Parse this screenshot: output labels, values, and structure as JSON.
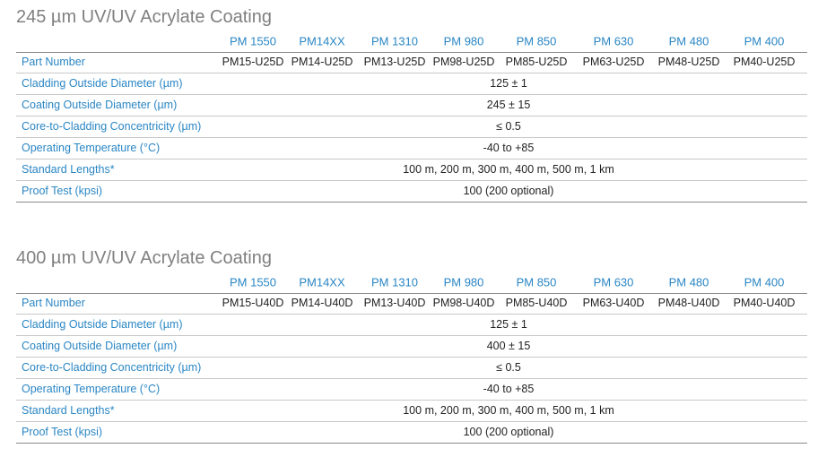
{
  "tables": [
    {
      "title": "245 µm UV/UV Acrylate Coating",
      "columns": [
        "PM 1550",
        "PM14XX",
        "PM 1310",
        "PM 980",
        "PM 850",
        "PM 630",
        "PM 480",
        "PM 400"
      ],
      "rows": [
        {
          "label": "Part Number",
          "cells": [
            "PM15-U25D",
            "PM14-U25D",
            "PM13-U25D",
            "PM98-U25D",
            "PM85-U25D",
            "PM63-U25D",
            "PM48-U25D",
            "PM40-U25D"
          ]
        },
        {
          "label": "Cladding Outside Diameter (µm)",
          "cells": [
            "125 ± 1"
          ]
        },
        {
          "label": "Coating Outside Diameter (µm)",
          "cells": [
            "245 ± 15"
          ]
        },
        {
          "label": "Core-to-Cladding Concentricity (µm)",
          "cells": [
            "≤ 0.5"
          ]
        },
        {
          "label": "Operating Temperature (°C)",
          "cells": [
            "-40 to +85"
          ]
        },
        {
          "label": "Standard Lengths*",
          "cells": [
            "100 m, 200 m, 300 m, 400 m, 500 m, 1 km"
          ]
        },
        {
          "label": "Proof Test (kpsi)",
          "cells": [
            "100 (200 optional)"
          ]
        }
      ]
    },
    {
      "title": "400 µm UV/UV Acrylate Coating",
      "columns": [
        "PM 1550",
        "PM14XX",
        "PM 1310",
        "PM 980",
        "PM 850",
        "PM 630",
        "PM 480",
        "PM 400"
      ],
      "rows": [
        {
          "label": "Part Number",
          "cells": [
            "PM15-U40D",
            "PM14-U40D",
            "PM13-U40D",
            "PM98-U40D",
            "PM85-U40D",
            "PM63-U40D",
            "PM48-U40D",
            "PM40-U40D"
          ]
        },
        {
          "label": "Cladding Outside Diameter (µm)",
          "cells": [
            "125 ± 1"
          ]
        },
        {
          "label": "Coating Outside Diameter (µm)",
          "cells": [
            "400 ± 15"
          ]
        },
        {
          "label": "Core-to-Cladding Concentricity (µm)",
          "cells": [
            "≤ 0.5"
          ]
        },
        {
          "label": "Operating Temperature (°C)",
          "cells": [
            "-40 to +85"
          ]
        },
        {
          "label": "Standard Lengths*",
          "cells": [
            "100 m, 200 m, 300 m, 400 m, 500 m, 1 km"
          ]
        },
        {
          "label": "Proof Test (kpsi)",
          "cells": [
            "100 (200 optional)"
          ]
        }
      ]
    }
  ]
}
